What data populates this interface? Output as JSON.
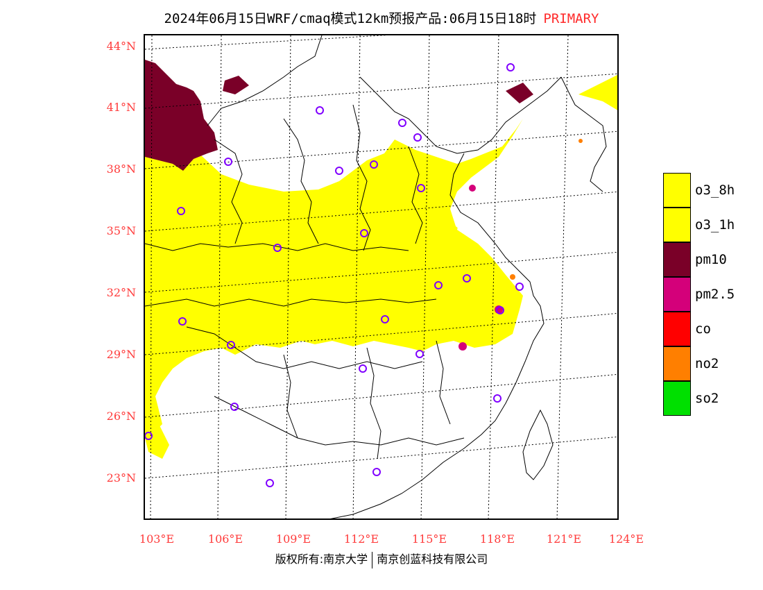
{
  "title": {
    "main": "2024年06月15日WRF/cmaq模式12km预报产品:06月15日18时",
    "tag": "PRIMARY",
    "tag_color": "#ff2a2a"
  },
  "axes": {
    "latitude_labels": [
      "44°N",
      "41°N",
      "38°N",
      "35°N",
      "32°N",
      "29°N",
      "26°N",
      "23°N"
    ],
    "longitude_labels": [
      "103°E",
      "106°E",
      "109°E",
      "112°E",
      "115°E",
      "118°E",
      "121°E",
      "124°E"
    ],
    "label_color": "#ff3b3b"
  },
  "legend": [
    {
      "label": "o3_8h",
      "color": "#ffff00"
    },
    {
      "label": "o3_1h",
      "color": "#ffff00"
    },
    {
      "label": "pm10",
      "color": "#7a0028"
    },
    {
      "label": "pm2.5",
      "color": "#d4007a"
    },
    {
      "label": "co",
      "color": "#ff0000"
    },
    {
      "label": "no2",
      "color": "#ff7f00"
    },
    {
      "label": "so2",
      "color": "#00e000"
    }
  ],
  "footer": {
    "left": "版权所有:南京大学",
    "right": "南京创蓝科技有限公司"
  }
}
